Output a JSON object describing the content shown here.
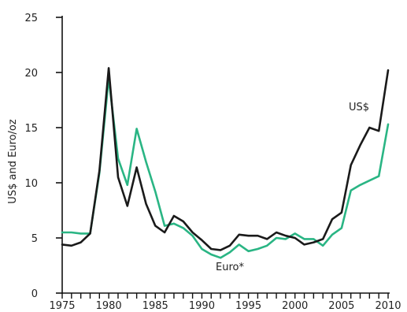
{
  "chart_data": {
    "type": "line",
    "title": "",
    "xlabel": "",
    "ylabel": "US$ and Euro/oz",
    "xlim": [
      1975,
      2010
    ],
    "ylim": [
      0,
      25
    ],
    "x_ticks": [
      1975,
      1980,
      1985,
      1990,
      1995,
      2000,
      2005,
      2010
    ],
    "y_ticks": [
      0,
      5,
      10,
      15,
      20,
      25
    ],
    "grid": false,
    "legend": "inline labels",
    "x": [
      1975,
      1976,
      1977,
      1978,
      1979,
      1980,
      1981,
      1982,
      1983,
      1984,
      1985,
      1986,
      1987,
      1988,
      1989,
      1990,
      1991,
      1992,
      1993,
      1994,
      1995,
      1996,
      1997,
      1998,
      1999,
      2000,
      2001,
      2002,
      2003,
      2004,
      2005,
      2006,
      2007,
      2008,
      2009,
      2010
    ],
    "series": [
      {
        "name": "US$",
        "color": "#1a1a1a",
        "values": [
          4.4,
          4.3,
          4.6,
          5.4,
          11.1,
          20.4,
          10.5,
          7.9,
          11.4,
          8.1,
          6.1,
          5.5,
          7.0,
          6.5,
          5.5,
          4.8,
          4.0,
          3.9,
          4.3,
          5.3,
          5.2,
          5.2,
          4.9,
          5.5,
          5.2,
          5.0,
          4.4,
          4.6,
          4.9,
          6.7,
          7.3,
          11.6,
          13.4,
          15.0,
          14.7,
          20.2
        ]
      },
      {
        "name": "Euro*",
        "color": "#2ab584",
        "values": [
          5.5,
          5.5,
          5.4,
          5.4,
          10.9,
          19.5,
          12.2,
          9.8,
          14.9,
          11.9,
          9.2,
          6.1,
          6.3,
          5.9,
          5.2,
          4.0,
          3.5,
          3.2,
          3.7,
          4.4,
          3.8,
          4.0,
          4.3,
          5.0,
          4.9,
          5.4,
          4.9,
          4.9,
          4.3,
          5.3,
          5.9,
          9.3,
          9.8,
          10.2,
          10.6,
          15.3
        ]
      }
    ]
  }
}
